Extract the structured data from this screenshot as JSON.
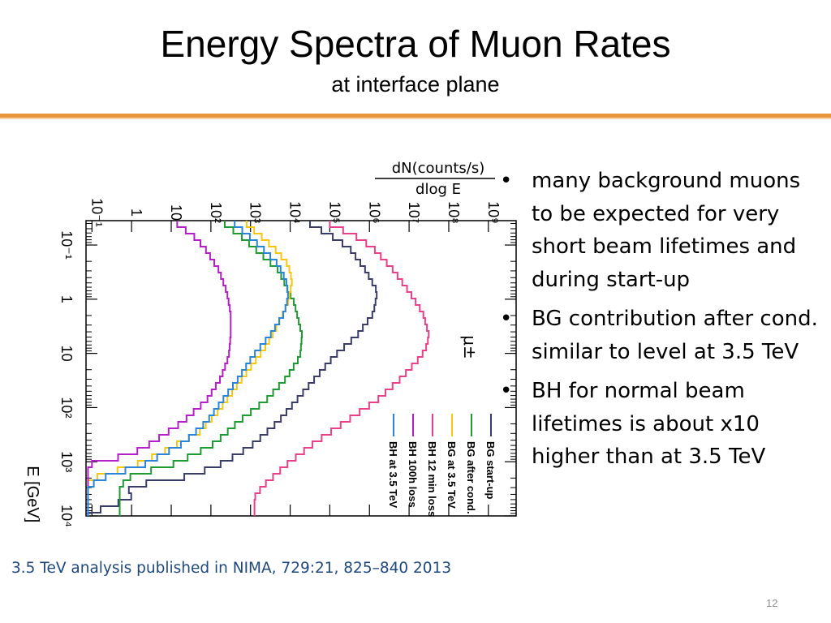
{
  "slide": {
    "title": "Energy Spectra of Muon Rates",
    "subtitle": "at interface plane",
    "bullets": [
      "many background muons to be expected for very short beam lifetimes and during start-up",
      "BG contribution after cond. similar to level at 3.5 TeV",
      "BH for normal beam lifetimes is about x10 higher than at 3.5 TeV"
    ],
    "bullet_symbol": "•",
    "footer": "3.5 TeV analysis published in NIMA, 729:21, 825–840 2013",
    "page_number": "12",
    "accent_color": "#e8963a",
    "footer_color": "#1f497d"
  },
  "chart_data": {
    "type": "line",
    "orientation": "rotated 90 degrees clockwise (energy runs downward, rate runs to the right)",
    "rate_label_numerator": "dN(counts/s)",
    "rate_label_denominator": "dlog E",
    "energy_label": "E [GeV]",
    "particle_label": "μ±",
    "rate_ticks": [
      "10⁻¹",
      "1",
      "10",
      "10²",
      "10³",
      "10⁴",
      "10⁵",
      "10⁶",
      "10⁷",
      "10⁸",
      "10⁹"
    ],
    "energy_ticks": [
      "10⁻¹",
      "1",
      "10",
      "10²",
      "10³",
      "10⁴"
    ],
    "energy_log_range": [
      -1.45,
      4.0
    ],
    "rate_log_range": [
      -1.15,
      9.7
    ],
    "energy_scale": "log",
    "rate_scale": "log",
    "grid": false,
    "legend_position": "bottom-right",
    "legend_order": [
      "BG start-up",
      "BG after cond.",
      "BG at 3.5 TeV",
      "BH 12 min loss",
      "BH 100h loss",
      "BH at 3.5 TeV"
    ],
    "series": [
      {
        "name": "BG start-up",
        "color": "#3a3d6c",
        "points": [
          [
            -1.45,
            4.5
          ],
          [
            -1.2,
            5.1
          ],
          [
            -1,
            5.5
          ],
          [
            -0.6,
            5.9
          ],
          [
            -0.2,
            6.2
          ],
          [
            0.2,
            6.1
          ],
          [
            0.6,
            5.7
          ],
          [
            1,
            5.1
          ],
          [
            1.6,
            4.4
          ],
          [
            2.2,
            3.7
          ],
          [
            2.6,
            3.1
          ],
          [
            2.8,
            2.7
          ],
          [
            3,
            2.2
          ],
          [
            3.2,
            1.5
          ],
          [
            3.4,
            -0.1
          ],
          [
            3.6,
            0
          ],
          [
            3.75,
            -0.5
          ],
          [
            3.9,
            -1.1
          ]
        ]
      },
      {
        "name": "BG after cond.",
        "color": "#1e9b32",
        "points": [
          [
            -1.45,
            2.35
          ],
          [
            -1.2,
            2.8
          ],
          [
            -1,
            3.1
          ],
          [
            -0.6,
            3.7
          ],
          [
            0,
            4.1
          ],
          [
            0.6,
            4.3
          ],
          [
            1,
            4.25
          ],
          [
            1.4,
            3.9
          ],
          [
            1.8,
            3.4
          ],
          [
            2.2,
            2.7
          ],
          [
            2.6,
            2.1
          ],
          [
            2.8,
            1.6
          ],
          [
            3,
            1.0
          ],
          [
            3.2,
            0
          ],
          [
            3.4,
            -0.3
          ]
        ]
      },
      {
        "name": "BG at 3.5 TeV",
        "color": "#f5c80f",
        "points": [
          [
            -1.45,
            2.9
          ],
          [
            -1.2,
            3.3
          ],
          [
            -1,
            3.6
          ],
          [
            -0.7,
            3.95
          ],
          [
            -0.4,
            4.05
          ],
          [
            0,
            3.95
          ],
          [
            0.4,
            3.7
          ],
          [
            0.8,
            3.4
          ],
          [
            1.2,
            3.0
          ],
          [
            1.6,
            2.6
          ],
          [
            2,
            2.2
          ],
          [
            2.4,
            1.7
          ],
          [
            2.6,
            1.2
          ],
          [
            2.8,
            0.7
          ],
          [
            3,
            0.1
          ],
          [
            3.2,
            -0.8
          ],
          [
            3.3,
            -1.1
          ]
        ]
      },
      {
        "name": "BH 12 min loss",
        "color": "#e8408a",
        "points": [
          [
            -1.45,
            5.0
          ],
          [
            -1.2,
            5.7
          ],
          [
            -1,
            6.1
          ],
          [
            -0.6,
            6.6
          ],
          [
            -0.2,
            7.0
          ],
          [
            0.2,
            7.35
          ],
          [
            0.6,
            7.5
          ],
          [
            0.8,
            7.45
          ],
          [
            1,
            7.3
          ],
          [
            1.4,
            6.8
          ],
          [
            1.8,
            6.2
          ],
          [
            2.2,
            5.4
          ],
          [
            2.6,
            4.6
          ],
          [
            3,
            3.9
          ],
          [
            3.4,
            3.3
          ],
          [
            3.6,
            3.1
          ]
        ]
      },
      {
        "name": "BH 100h loss",
        "color": "#b51ec8",
        "points": [
          [
            -1.45,
            1.15
          ],
          [
            -1.2,
            1.6
          ],
          [
            -1,
            1.85
          ],
          [
            -0.6,
            2.2
          ],
          [
            -0.2,
            2.4
          ],
          [
            0.2,
            2.5
          ],
          [
            0.6,
            2.5
          ],
          [
            1,
            2.45
          ],
          [
            1.4,
            2.25
          ],
          [
            1.8,
            1.9
          ],
          [
            2.2,
            1.3
          ],
          [
            2.6,
            0.5
          ],
          [
            2.8,
            0
          ],
          [
            3,
            -1.1
          ]
        ]
      },
      {
        "name": "BH at 3.5 TeV",
        "color": "#2a84d9",
        "points": [
          [
            -1.45,
            2.6
          ],
          [
            -1.2,
            3.0
          ],
          [
            -1,
            3.3
          ],
          [
            -0.7,
            3.7
          ],
          [
            -0.4,
            3.9
          ],
          [
            -0.1,
            3.95
          ],
          [
            0.2,
            3.85
          ],
          [
            0.6,
            3.5
          ],
          [
            1,
            3.05
          ],
          [
            1.4,
            2.7
          ],
          [
            1.8,
            2.3
          ],
          [
            2.2,
            1.9
          ],
          [
            2.6,
            1.3
          ],
          [
            2.8,
            0.8
          ],
          [
            3,
            0.3
          ],
          [
            3.2,
            -0.6
          ],
          [
            3.4,
            -1.1
          ]
        ]
      }
    ]
  }
}
